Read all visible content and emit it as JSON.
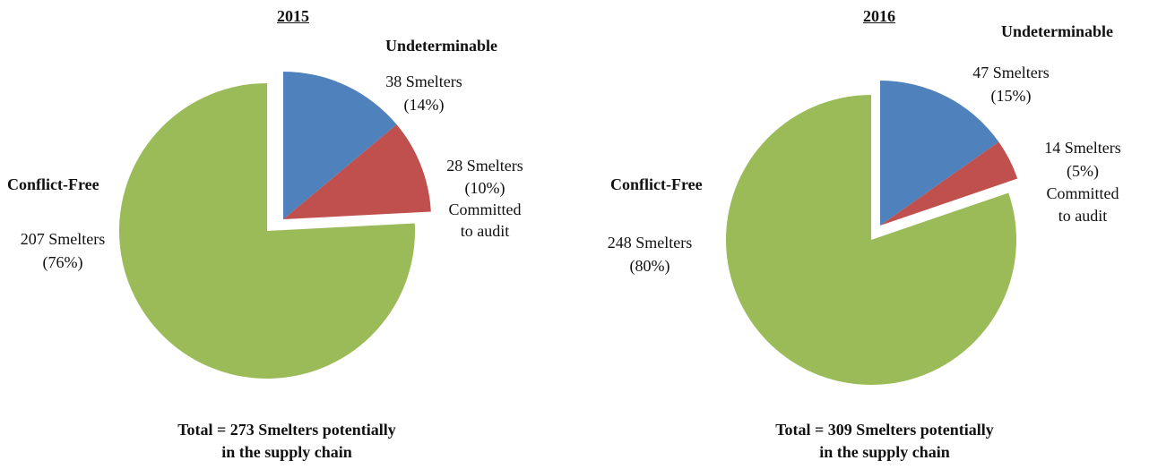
{
  "chart_data": [
    {
      "type": "pie",
      "title": "2015",
      "slices": [
        {
          "category": "Undeterminable",
          "count_label": "38 Smelters",
          "pct_label": "(14%)",
          "value": 38,
          "color": "#4f81bd",
          "exploded": true
        },
        {
          "category": "Committed to audit",
          "count_label": "28 Smelters",
          "pct_label": "(10%)",
          "value": 28,
          "color": "#c0504d",
          "exploded": true
        },
        {
          "category": "Conflict-Free",
          "count_label": "207 Smelters",
          "pct_label": "(76%)",
          "value": 207,
          "color": "#9bbb59",
          "exploded": false
        }
      ],
      "committed_label_line1": "Committed",
      "committed_label_line2": "to audit",
      "footer_line1": "Total = 273 Smelters potentially",
      "footer_line2": "in the supply chain"
    },
    {
      "type": "pie",
      "title": "2016",
      "slices": [
        {
          "category": "Undeterminable",
          "count_label": "47 Smelters",
          "pct_label": "(15%)",
          "value": 47,
          "color": "#4f81bd",
          "exploded": true
        },
        {
          "category": "Committed to audit",
          "count_label": "14 Smelters",
          "pct_label": "(5%)",
          "value": 14,
          "color": "#c0504d",
          "exploded": true
        },
        {
          "category": "Conflict-Free",
          "count_label": "248 Smelters",
          "pct_label": "(80%)",
          "value": 248,
          "color": "#9bbb59",
          "exploded": false
        }
      ],
      "committed_label_line1": "Committed",
      "committed_label_line2": "to audit",
      "footer_line1": "Total = 309 Smelters potentially",
      "footer_line2": "in the supply chain"
    }
  ]
}
